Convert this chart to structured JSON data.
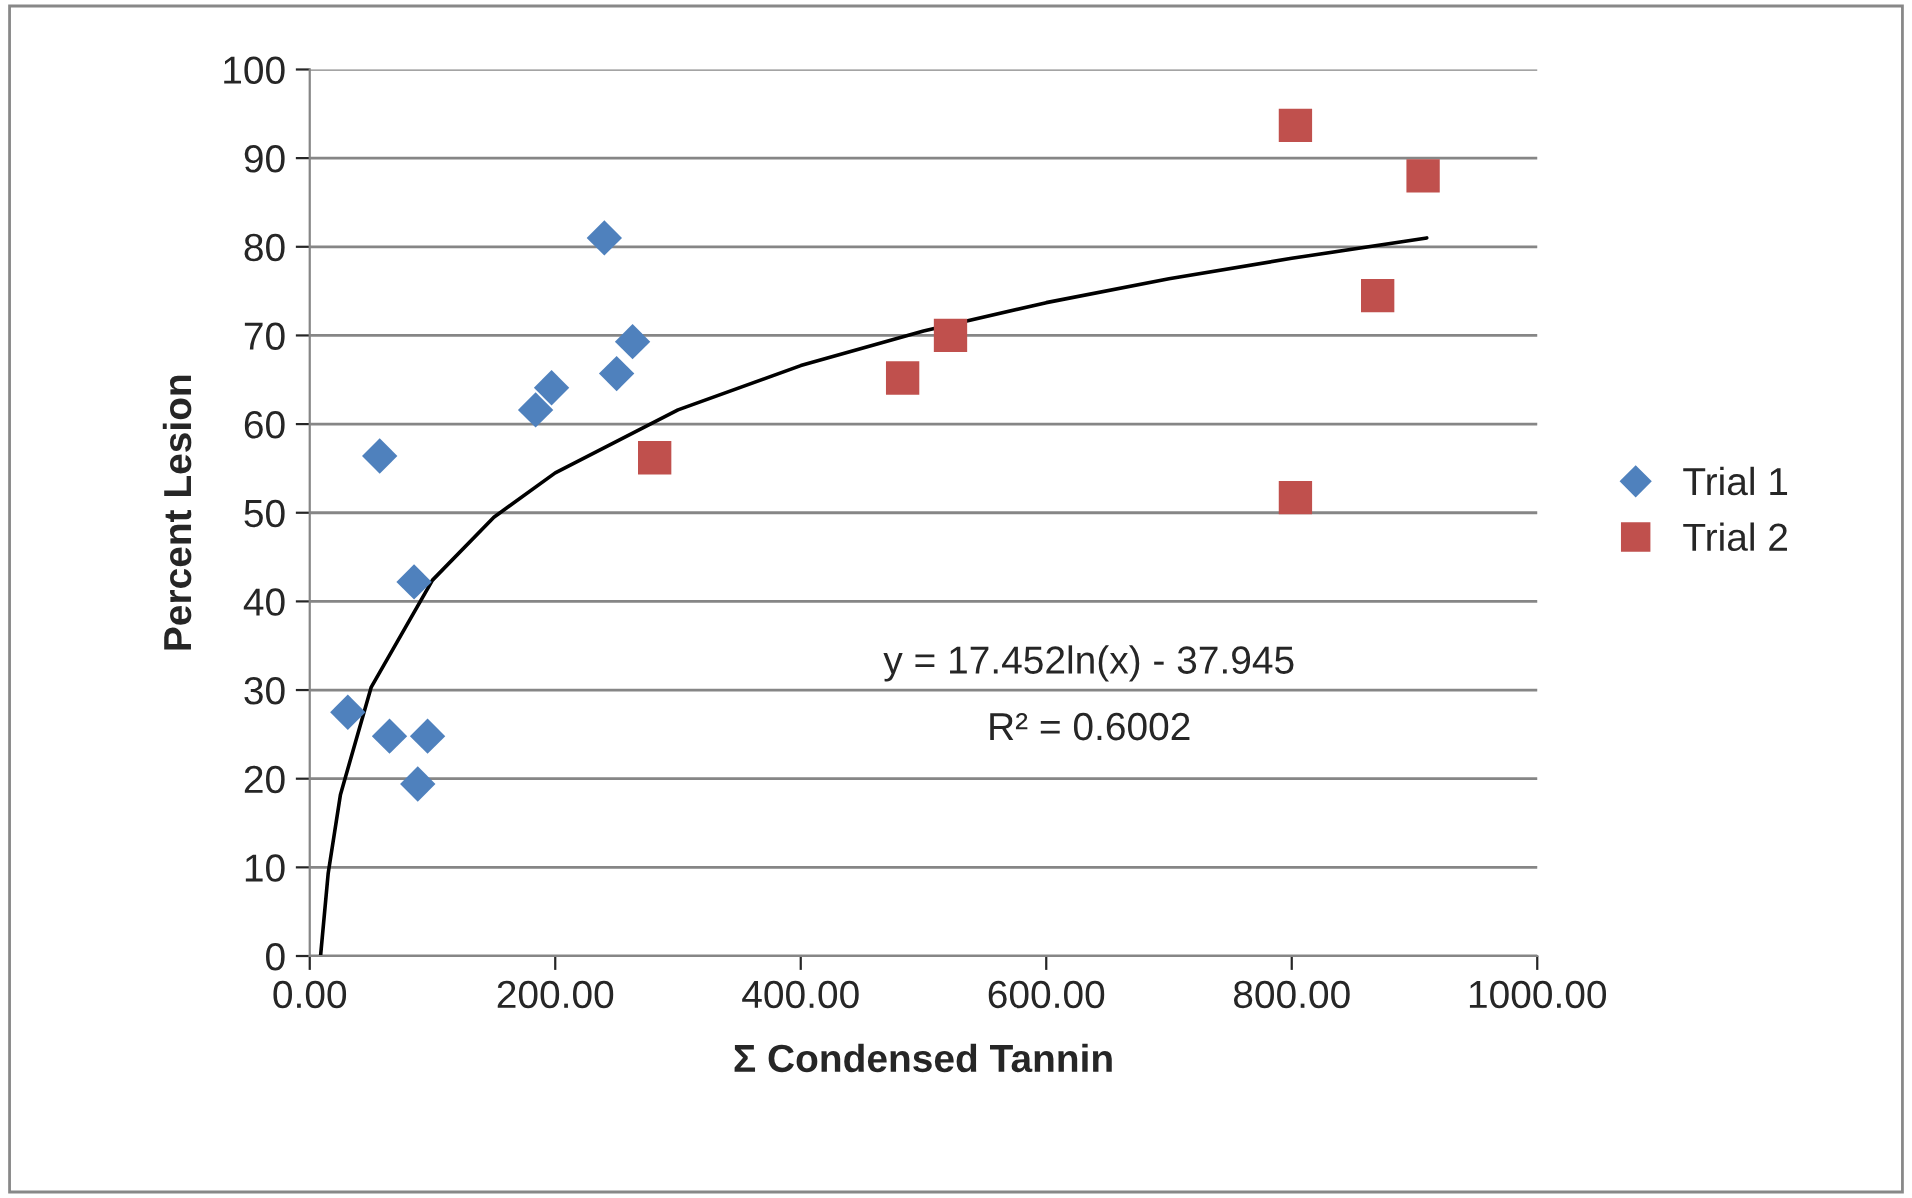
{
  "chart_data": {
    "type": "scatter",
    "xlabel": "Σ Condensed Tannin",
    "ylabel": "Percent Lesion",
    "xlim": [
      0,
      1000
    ],
    "ylim": [
      0,
      100
    ],
    "xticks": [
      {
        "value": 0,
        "label": "0.00"
      },
      {
        "value": 200,
        "label": "200.00"
      },
      {
        "value": 400,
        "label": "400.00"
      },
      {
        "value": 600,
        "label": "600.00"
      },
      {
        "value": 800,
        "label": "800.00"
      },
      {
        "value": 1000,
        "label": "1000.00"
      }
    ],
    "yticks": [
      0,
      10,
      20,
      30,
      40,
      50,
      60,
      70,
      80,
      90,
      100
    ],
    "grid": "y",
    "legend": "right",
    "series": [
      {
        "name": "Trial 1",
        "color": "#4f81bd",
        "marker": "diamond",
        "x": [
          31,
          57,
          65,
          85,
          88,
          96,
          184,
          197,
          240,
          250,
          263
        ],
        "values": [
          27.5,
          56.4,
          24.8,
          42.2,
          19.4,
          24.8,
          61.6,
          64.1,
          81,
          65.7,
          69.3
        ]
      },
      {
        "name": "Trial 2",
        "color": "#c0504d",
        "marker": "square",
        "x": [
          281,
          483,
          522,
          803,
          803,
          870,
          907
        ],
        "values": [
          56.2,
          65.2,
          70,
          93.7,
          51.7,
          74.5,
          88
        ]
      },
      {
        "type": "line",
        "color": "#000000",
        "marker": "none",
        "x": [
          8.8,
          15,
          25,
          50,
          100,
          150,
          200,
          300,
          400,
          500,
          600,
          700,
          800,
          910
        ],
        "values": [
          0,
          9.3,
          18.2,
          30.3,
          42.4,
          49.5,
          54.5,
          61.6,
          66.6,
          70.5,
          73.7,
          76.4,
          78.7,
          81
        ]
      }
    ],
    "annotations": [
      "y = 17.452ln(x) - 37.945",
      "R² = 0.6002"
    ]
  }
}
